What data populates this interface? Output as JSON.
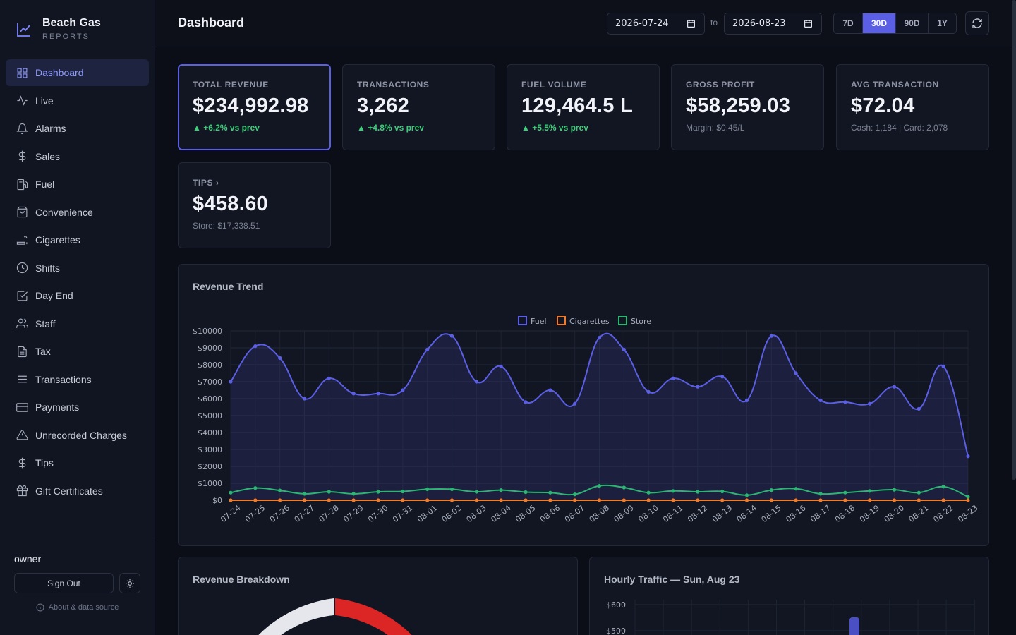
{
  "brand": {
    "title": "Beach Gas",
    "subtitle": "REPORTS"
  },
  "nav": [
    {
      "label": "Dashboard",
      "icon": "grid-icon",
      "active": true
    },
    {
      "label": "Live",
      "icon": "activity-icon"
    },
    {
      "label": "Alarms",
      "icon": "bell-icon"
    },
    {
      "label": "Sales",
      "icon": "dollar-icon"
    },
    {
      "label": "Fuel",
      "icon": "fuel-pump-icon"
    },
    {
      "label": "Convenience",
      "icon": "shopping-bag-icon"
    },
    {
      "label": "Cigarettes",
      "icon": "cigarette-icon"
    },
    {
      "label": "Shifts",
      "icon": "clock-icon"
    },
    {
      "label": "Day End",
      "icon": "check-square-icon"
    },
    {
      "label": "Staff",
      "icon": "users-icon"
    },
    {
      "label": "Tax",
      "icon": "file-text-icon"
    },
    {
      "label": "Transactions",
      "icon": "list-icon"
    },
    {
      "label": "Payments",
      "icon": "credit-card-icon"
    },
    {
      "label": "Unrecorded Charges",
      "icon": "alert-triangle-icon"
    },
    {
      "label": "Tips",
      "icon": "dollar-icon"
    },
    {
      "label": "Gift Certificates",
      "icon": "gift-icon"
    }
  ],
  "footer": {
    "user": "owner",
    "sign_out": "Sign Out",
    "about": "About & data source"
  },
  "header": {
    "title": "Dashboard",
    "date_from": "2026-07-24",
    "to_label": "to",
    "date_to": "2026-08-23",
    "ranges": [
      "7D",
      "30D",
      "90D",
      "1Y"
    ],
    "active_range": "30D"
  },
  "kpis": [
    {
      "label": "TOTAL REVENUE",
      "value": "$234,992.98",
      "sub": "▲ +6.2% vs prev",
      "trend": "up"
    },
    {
      "label": "TRANSACTIONS",
      "value": "3,262",
      "sub": "▲ +4.8% vs prev",
      "trend": "up"
    },
    {
      "label": "FUEL VOLUME",
      "value": "129,464.5 L",
      "sub": "▲ +5.5% vs prev",
      "trend": "up"
    },
    {
      "label": "GROSS PROFIT",
      "value": "$58,259.03",
      "sub": "Margin: $0.45/L",
      "trend": "none"
    },
    {
      "label": "AVG TRANSACTION",
      "value": "$72.04",
      "sub": "Cash: 1,184 | Card: 2,078",
      "trend": "none"
    },
    {
      "label": "TIPS ›",
      "value": "$458.60",
      "sub": "Store: $17,338.51",
      "trend": "none"
    }
  ],
  "panels": {
    "revenue_trend": "Revenue Trend",
    "revenue_breakdown": "Revenue Breakdown",
    "hourly_traffic": "Hourly Traffic — Sun, Aug 23"
  },
  "colors": {
    "fuel": "#5b5fe6",
    "cigarettes": "#f07b2a",
    "store": "#2bb673",
    "accent": "#5b5fe6",
    "up": "#3ccf7a"
  },
  "chart_data": [
    {
      "type": "line",
      "title": "Revenue Trend",
      "categories": [
        "07-24",
        "07-25",
        "07-26",
        "07-27",
        "07-28",
        "07-29",
        "07-30",
        "07-31",
        "08-01",
        "08-02",
        "08-03",
        "08-04",
        "08-05",
        "08-06",
        "08-07",
        "08-08",
        "08-09",
        "08-10",
        "08-11",
        "08-12",
        "08-13",
        "08-14",
        "08-15",
        "08-16",
        "08-17",
        "08-18",
        "08-19",
        "08-20",
        "08-21",
        "08-22",
        "08-23"
      ],
      "series": [
        {
          "name": "Fuel",
          "values": [
            7000,
            9100,
            8400,
            6000,
            7200,
            6300,
            6300,
            6500,
            8900,
            9700,
            7000,
            7900,
            5800,
            6500,
            5700,
            9600,
            8900,
            6400,
            7200,
            6700,
            7300,
            5900,
            9700,
            7500,
            5900,
            5800,
            5700,
            6700,
            5400,
            7900,
            2600
          ]
        },
        {
          "name": "Cigarettes",
          "values": [
            0,
            0,
            0,
            0,
            0,
            0,
            0,
            0,
            0,
            0,
            0,
            0,
            0,
            0,
            0,
            0,
            0,
            0,
            0,
            0,
            0,
            0,
            0,
            0,
            0,
            0,
            0,
            0,
            0,
            0,
            0
          ]
        },
        {
          "name": "Store",
          "values": [
            450,
            720,
            580,
            380,
            500,
            380,
            500,
            520,
            650,
            650,
            500,
            600,
            480,
            450,
            350,
            850,
            750,
            450,
            550,
            500,
            520,
            300,
            600,
            680,
            380,
            450,
            550,
            620,
            450,
            800,
            200
          ]
        }
      ],
      "ylim": [
        0,
        10000
      ],
      "yticks": [
        "$0",
        "$1000",
        "$2000",
        "$3000",
        "$4000",
        "$5000",
        "$6000",
        "$7000",
        "$8000",
        "$9000",
        "$10000"
      ],
      "legend": "top-center",
      "grid": true
    },
    {
      "type": "pie",
      "title": "Revenue Breakdown",
      "note": "partially visible (doughnut cut off)"
    },
    {
      "type": "bar",
      "title": "Hourly Traffic — Sun, Aug 23",
      "yticks_visible": [
        "$600",
        "$500"
      ]
    }
  ]
}
